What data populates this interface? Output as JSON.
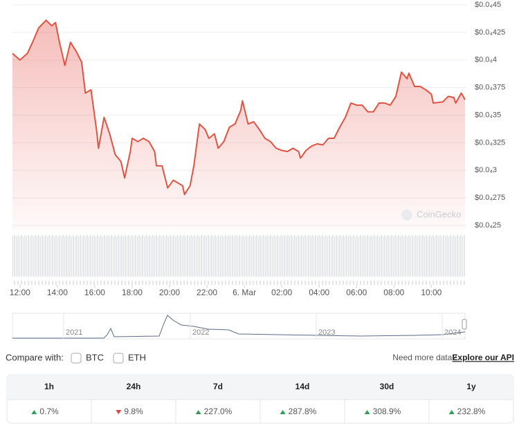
{
  "chart_data": {
    "type": "line",
    "x": [
      11.6,
      12.0,
      12.4,
      12.7,
      13.0,
      13.4,
      13.7,
      13.9,
      14.1,
      14.4,
      14.7,
      15.0,
      15.3,
      15.5,
      15.8,
      16.1,
      16.2,
      16.5,
      16.8,
      17.1,
      17.4,
      17.6,
      17.9,
      18.0,
      18.3,
      18.6,
      18.9,
      19.2,
      19.3,
      19.6,
      19.9,
      20.2,
      20.7,
      20.8,
      21.1,
      21.3,
      21.6,
      21.9,
      22.1,
      22.4,
      22.6,
      22.9,
      23.2,
      23.5,
      23.8,
      23.9,
      24.2,
      24.5,
      24.8,
      25.1,
      25.4,
      25.7,
      26.0,
      26.3,
      26.6,
      26.9,
      27.0,
      27.3,
      27.6,
      27.9,
      28.2,
      28.5,
      28.8,
      29.1,
      29.4,
      29.7,
      30.0,
      30.3,
      30.6,
      30.9,
      31.2,
      31.5,
      31.8,
      32.1,
      32.4,
      32.7,
      32.8,
      33.1,
      33.4,
      33.7,
      34.0,
      34.1,
      34.6,
      34.9,
      35.2,
      35.3,
      35.6,
      35.8
    ],
    "series": [
      {
        "color": "#e15241",
        "values": [
          4.06e-05,
          4e-05,
          4.06e-05,
          4.17e-05,
          4.29e-05,
          4.36e-05,
          4.31e-05,
          4.34e-05,
          4.17e-05,
          3.95e-05,
          4.16e-05,
          4.08e-05,
          3.98e-05,
          3.7e-05,
          3.73e-05,
          3.36e-05,
          3.2e-05,
          3.48e-05,
          3.33e-05,
          3.14e-05,
          3.08e-05,
          2.93e-05,
          3.17e-05,
          3.29e-05,
          3.26e-05,
          3.29e-05,
          3.26e-05,
          3.17e-05,
          3.04e-05,
          3.04e-05,
          2.84e-05,
          2.91e-05,
          2.86e-05,
          2.78e-05,
          2.86e-05,
          3.04e-05,
          3.42e-05,
          3.37e-05,
          3.29e-05,
          3.33e-05,
          3.2e-05,
          3.26e-05,
          3.39e-05,
          3.42e-05,
          3.54e-05,
          3.63e-05,
          3.42e-05,
          3.44e-05,
          3.37e-05,
          3.29e-05,
          3.26e-05,
          3.2e-05,
          3.18e-05,
          3.17e-05,
          3.2e-05,
          3.17e-05,
          3.11e-05,
          3.18e-05,
          3.22e-05,
          3.24e-05,
          3.23e-05,
          3.29e-05,
          3.29e-05,
          3.39e-05,
          3.48e-05,
          3.61e-05,
          3.59e-05,
          3.59e-05,
          3.53e-05,
          3.53e-05,
          3.61e-05,
          3.61e-05,
          3.59e-05,
          3.67e-05,
          3.89e-05,
          3.83e-05,
          3.88e-05,
          3.76e-05,
          3.76e-05,
          3.73e-05,
          3.69e-05,
          3.61e-05,
          3.62e-05,
          3.67e-05,
          3.66e-05,
          3.61e-05,
          3.7e-05,
          3.64e-05
        ]
      }
    ],
    "xlim": [
      11.6,
      35.8
    ],
    "xticks": [
      {
        "value": 12,
        "label": "12:00"
      },
      {
        "value": 14,
        "label": "14:00"
      },
      {
        "value": 16,
        "label": "16:00"
      },
      {
        "value": 18,
        "label": "18:00"
      },
      {
        "value": 20,
        "label": "20:00"
      },
      {
        "value": 22,
        "label": "22:00"
      },
      {
        "value": 24,
        "label": "6. Mar"
      },
      {
        "value": 26,
        "label": "02:00"
      },
      {
        "value": 28,
        "label": "04:00"
      },
      {
        "value": 30,
        "label": "06:00"
      },
      {
        "value": 32,
        "label": "08:00"
      },
      {
        "value": 34,
        "label": "10:00"
      }
    ],
    "ylim": [
      2.5e-05,
      4.5e-05
    ],
    "yticks": [
      {
        "value": 2.5e-05,
        "label": "$0.0₄25"
      },
      {
        "value": 2.75e-05,
        "label": "$0.0₄275"
      },
      {
        "value": 3e-05,
        "label": "$0.0₄3"
      },
      {
        "value": 3.25e-05,
        "label": "$0.0₄325"
      },
      {
        "value": 3.5e-05,
        "label": "$0.0₄35"
      },
      {
        "value": 3.75e-05,
        "label": "$0.0₄375"
      },
      {
        "value": 4e-05,
        "label": "$0.0₄4"
      },
      {
        "value": 4.25e-05,
        "label": "$0.0₄425"
      },
      {
        "value": 4.5e-05,
        "label": "$0.0₄45"
      }
    ],
    "grid": true
  },
  "watermark": "CoinGecko",
  "navigator": {
    "labels": [
      "2021",
      "2022",
      "2023",
      "2024"
    ]
  },
  "compare": {
    "label": "Compare with:",
    "options": [
      "BTC",
      "ETH"
    ],
    "prompt": "Need more data?",
    "link": "Explore our API"
  },
  "performance": [
    {
      "period": "1h",
      "change": "0.7%",
      "trend": "up"
    },
    {
      "period": "24h",
      "change": "9.8%",
      "trend": "down"
    },
    {
      "period": "7d",
      "change": "227.0%",
      "trend": "up"
    },
    {
      "period": "14d",
      "change": "287.8%",
      "trend": "up"
    },
    {
      "period": "30d",
      "change": "308.9%",
      "trend": "up"
    },
    {
      "period": "1y",
      "change": "232.8%",
      "trend": "up"
    }
  ]
}
